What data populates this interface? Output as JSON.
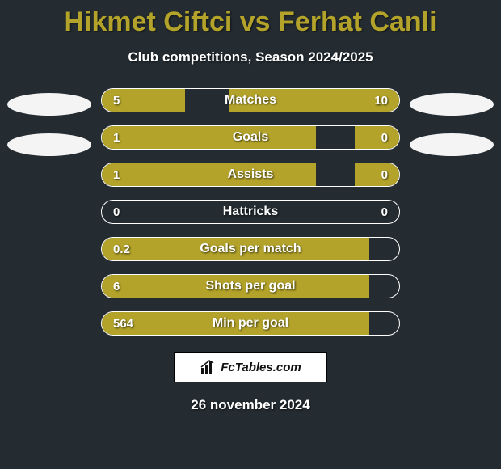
{
  "title_color": "#b3a32a",
  "background_color": "#242c32",
  "bar_border_color": "#ffffff",
  "player1": {
    "name": "Hikmet Ciftci",
    "color": "#b3a32a"
  },
  "player2": {
    "name": "Ferhat Canli",
    "color": "#b3a32a"
  },
  "subtitle": "Club competitions, Season 2024/2025",
  "vs_text": " vs ",
  "stats": [
    {
      "label": "Matches",
      "left_val": "5",
      "right_val": "10",
      "left_pct": 28,
      "right_pct": 57
    },
    {
      "label": "Goals",
      "left_val": "1",
      "right_val": "0",
      "left_pct": 72,
      "right_pct": 15
    },
    {
      "label": "Assists",
      "left_val": "1",
      "right_val": "0",
      "left_pct": 72,
      "right_pct": 15
    },
    {
      "label": "Hattricks",
      "left_val": "0",
      "right_val": "0",
      "left_pct": 0,
      "right_pct": 0
    },
    {
      "label": "Goals per match",
      "left_val": "0.2",
      "right_val": "",
      "left_pct": 90,
      "right_pct": 0
    },
    {
      "label": "Shots per goal",
      "left_val": "6",
      "right_val": "",
      "left_pct": 90,
      "right_pct": 0
    },
    {
      "label": "Min per goal",
      "left_val": "564",
      "right_val": "",
      "left_pct": 90,
      "right_pct": 0
    }
  ],
  "footer": {
    "brand": "FcTables.com",
    "date": "26 november 2024"
  }
}
